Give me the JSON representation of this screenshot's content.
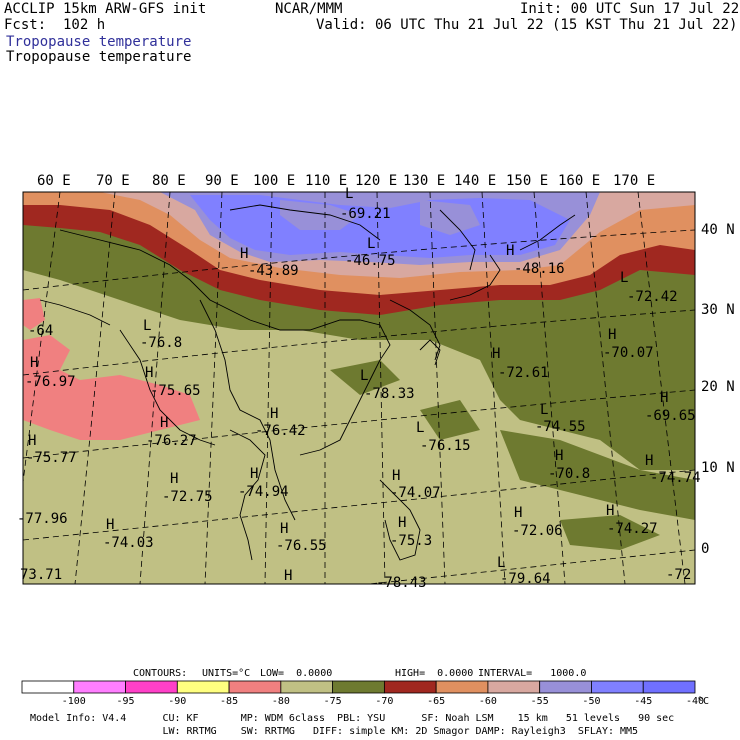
{
  "header": {
    "model": "ACCLIP 15km ARW-GFS init",
    "org": "NCAR/MMM",
    "init": "Init: 00 UTC Sun 17 Jul 22",
    "fcst": "Fcst:  102 h",
    "valid": "Valid: 06 UTC Thu 21 Jul 22 (15 KST Thu 21 Jul 22)",
    "field1": "Tropopause temperature",
    "field2": "Tropopause temperature"
  },
  "lon_labels": [
    "60 E",
    "70 E",
    "80 E",
    "90 E",
    "100 E",
    "110 E",
    "120 E",
    "130 E",
    "140 E",
    "150 E",
    "160 E",
    "170 E"
  ],
  "lat_labels": [
    "40 N",
    "30 N",
    "20 N",
    "10 N",
    "0"
  ],
  "extrema": [
    {
      "k": "H",
      "v": "-43.89"
    },
    {
      "k": "L",
      "v": "-46.75"
    },
    {
      "k": "L",
      "v": "-69.21"
    },
    {
      "k": "H",
      "v": "-48.16"
    },
    {
      "k": "L",
      "v": "-72.42"
    },
    {
      "k": "L",
      "v": "-76.8"
    },
    {
      "k": "H",
      "v": "-70.07"
    },
    {
      "k": "H",
      "v": "-76.97"
    },
    {
      "k": "H",
      "v": "-75.65"
    },
    {
      "k": "L",
      "v": "-78.33"
    },
    {
      "k": "H",
      "v": "-72.61"
    },
    {
      "k": "H",
      "v": "-69.65"
    },
    {
      "k": "H",
      "v": "-76.27"
    },
    {
      "k": "H",
      "v": "-76.42"
    },
    {
      "k": "L",
      "v": "-76.15"
    },
    {
      "k": "L",
      "v": "-74.55"
    },
    {
      "k": "H",
      "v": "-75.77"
    },
    {
      "k": "H",
      "v": "-70.8"
    },
    {
      "k": "H",
      "v": "-74.74"
    },
    {
      "k": "H",
      "v": "-72.75"
    },
    {
      "k": "H",
      "v": "-74.94"
    },
    {
      "k": "H",
      "v": "-74.07"
    },
    {
      "k": "H",
      "v": "-72.06"
    },
    {
      "k": "H",
      "v": "-74.27"
    },
    {
      "k": "H",
      "v": "-74.03"
    },
    {
      "k": "H",
      "v": "-76.55"
    },
    {
      "k": "H",
      "v": "-75.3"
    },
    {
      "k": "L",
      "v": "-79.64"
    },
    {
      "k": "",
      "v": "-64"
    },
    {
      "k": "",
      "v": "-77.96"
    },
    {
      "k": "",
      "v": "73.71"
    },
    {
      "k": "",
      "v": "-78.43"
    },
    {
      "k": "",
      "v": "-72"
    }
  ],
  "contours": {
    "label": "CONTOURS:",
    "units": "UNITS=°C",
    "low": "LOW=  0.0000",
    "high": "HIGH=  0.0000",
    "interval": "INTERVAL=   1000.0"
  },
  "colorbar": {
    "colors": [
      "#ffffff",
      "#ff7eff",
      "#ff40c8",
      "#ffff80",
      "#f08080",
      "#c0c084",
      "#6e7a30",
      "#a02820",
      "#e09060",
      "#d8a8a0",
      "#9890d8",
      "#8080ff",
      "#7070ff"
    ],
    "ticks": [
      "-100",
      "-95",
      "-90",
      "-85",
      "-80",
      "-75",
      "-70",
      "-65",
      "-60",
      "-55",
      "-50",
      "-45",
      "-40"
    ],
    "unit": "°C"
  },
  "footer": {
    "line1": "Model Info: V4.4      CU: KF       MP: WDM 6class  PBL: YSU      SF: Noah LSM    15 km   51 levels   90 sec",
    "line2": "                      LW: RRTMG    SW: RRTMG   DIFF: simple KM: 2D Smagor DAMP: Rayleigh3  SFLAY: MM5"
  }
}
